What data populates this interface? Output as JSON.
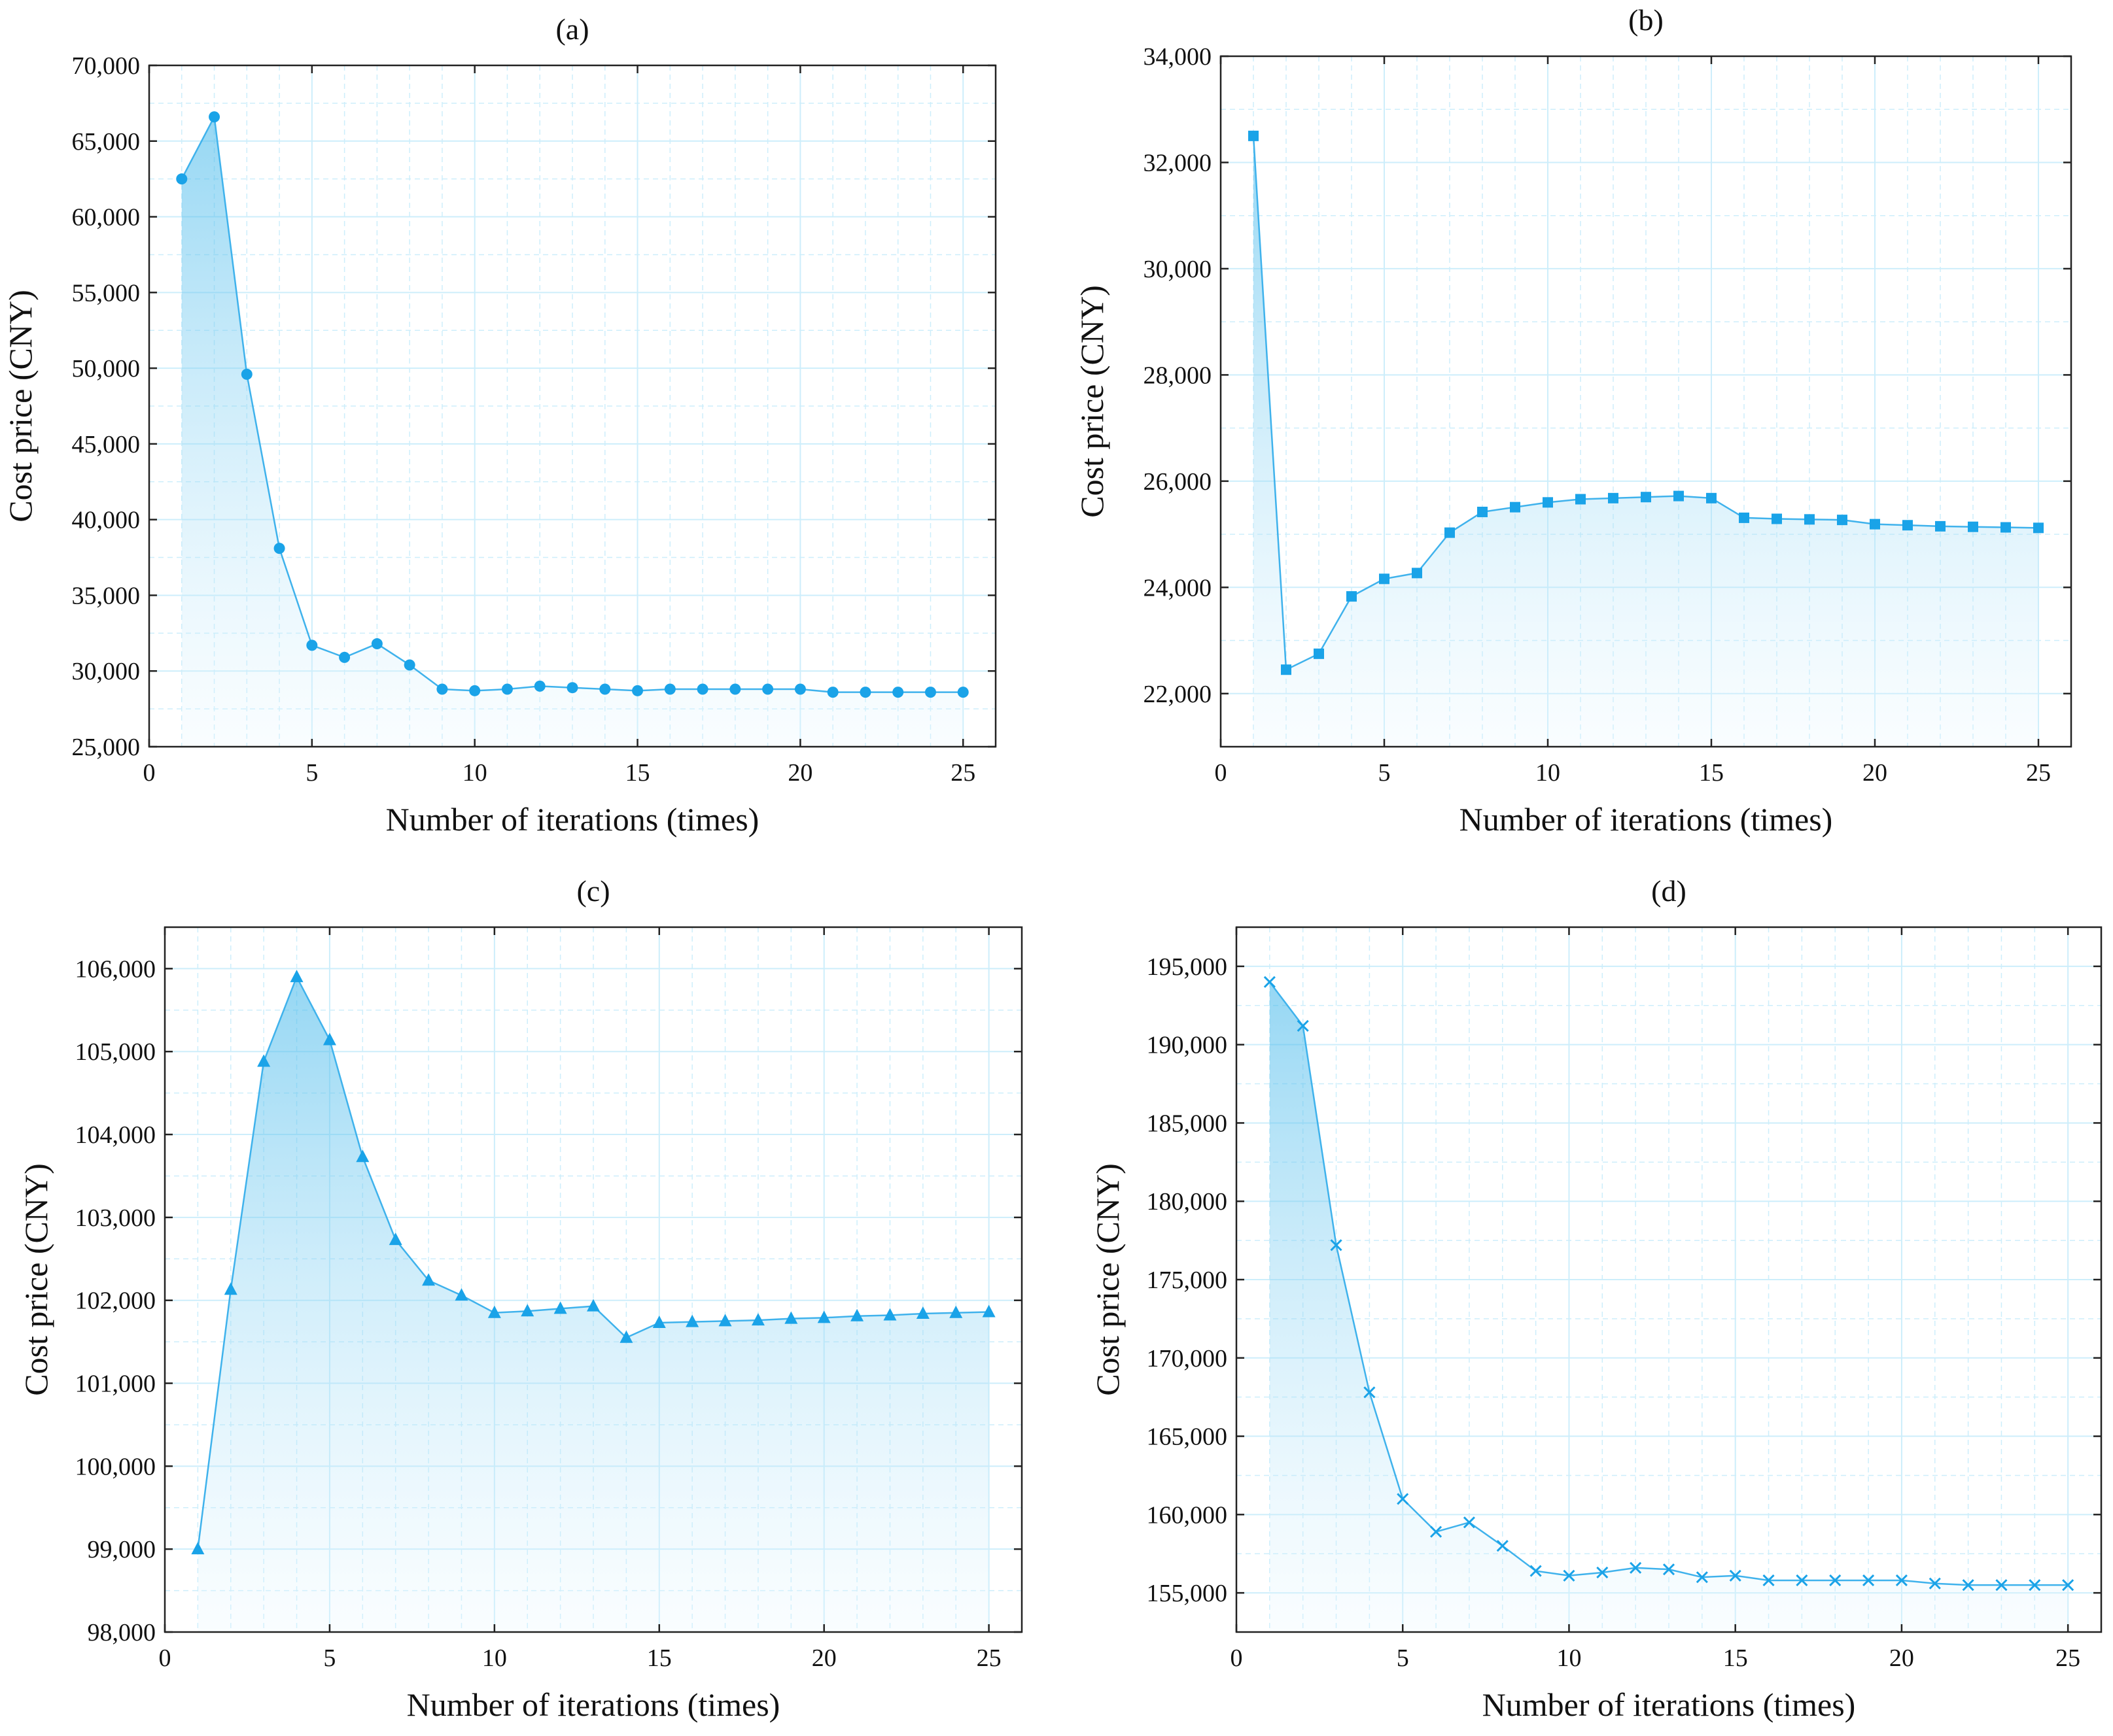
{
  "figure": {
    "panel_count": 4,
    "marker_color": "#1aa3e8",
    "line_color": "#3fb2ec",
    "grid_color": "#cdeefb",
    "fill_color_top": "#3fb6ea",
    "fill_color_bottom": "#e9f8ff"
  },
  "chart_data": [
    {
      "type": "area",
      "title": "(a)",
      "xlabel": "Number of iterations (times)",
      "ylabel": "Cost price (CNY)",
      "marker": "circle",
      "xlim": [
        0,
        26
      ],
      "ylim": [
        25000,
        70000
      ],
      "xticks": [
        0,
        5,
        10,
        15,
        20,
        25
      ],
      "xtick_labels": [
        "0",
        "5",
        "10",
        "15",
        "20",
        "25"
      ],
      "yticks": [
        25000,
        30000,
        35000,
        40000,
        45000,
        50000,
        55000,
        60000,
        65000,
        70000
      ],
      "ytick_labels": [
        "25,000",
        "30,000",
        "35,000",
        "40,000",
        "45,000",
        "50,000",
        "55,000",
        "60,000",
        "65,000",
        "70,000"
      ],
      "x": [
        1,
        2,
        3,
        4,
        5,
        6,
        7,
        8,
        9,
        10,
        11,
        12,
        13,
        14,
        15,
        16,
        17,
        18,
        19,
        20,
        21,
        22,
        23,
        24,
        25
      ],
      "y": [
        62500,
        66600,
        49600,
        38100,
        31700,
        30900,
        31800,
        30400,
        28800,
        28700,
        28800,
        29000,
        28900,
        28800,
        28700,
        28800,
        28800,
        28800,
        28800,
        28800,
        28600,
        28600,
        28600,
        28600,
        28600
      ]
    },
    {
      "type": "area",
      "title": "(b)",
      "xlabel": "Number of iterations (times)",
      "ylabel": "Cost price (CNY)",
      "marker": "square",
      "xlim": [
        0,
        26
      ],
      "ylim": [
        21000,
        34000
      ],
      "xticks": [
        0,
        5,
        10,
        15,
        20,
        25
      ],
      "xtick_labels": [
        "0",
        "5",
        "10",
        "15",
        "20",
        "25"
      ],
      "yticks": [
        22000,
        24000,
        26000,
        28000,
        30000,
        32000,
        34000
      ],
      "ytick_labels": [
        "22,000",
        "24,000",
        "26,000",
        "28,000",
        "30,000",
        "32,000",
        "34,000"
      ],
      "x": [
        1,
        2,
        3,
        4,
        5,
        6,
        7,
        8,
        9,
        10,
        11,
        12,
        13,
        14,
        15,
        16,
        17,
        18,
        19,
        20,
        21,
        22,
        23,
        24,
        25
      ],
      "y": [
        32500,
        22450,
        22750,
        23830,
        24160,
        24270,
        25030,
        25420,
        25510,
        25600,
        25660,
        25680,
        25700,
        25720,
        25680,
        25310,
        25290,
        25280,
        25270,
        25190,
        25170,
        25150,
        25140,
        25130,
        25120
      ]
    },
    {
      "type": "area",
      "title": "(c)",
      "xlabel": "Number of iterations (times)",
      "ylabel": "Cost price (CNY)",
      "marker": "triangle",
      "xlim": [
        0,
        26
      ],
      "ylim": [
        98000,
        106500
      ],
      "xticks": [
        0,
        5,
        10,
        15,
        20,
        25
      ],
      "xtick_labels": [
        "0",
        "5",
        "10",
        "15",
        "20",
        "25"
      ],
      "yticks": [
        98000,
        99000,
        100000,
        101000,
        102000,
        103000,
        104000,
        105000,
        106000
      ],
      "ytick_labels": [
        "98,000",
        "99,000",
        "100,000",
        "101,000",
        "102,000",
        "103,000",
        "104,000",
        "105,000",
        "106,000"
      ],
      "x": [
        1,
        2,
        3,
        4,
        5,
        6,
        7,
        8,
        9,
        10,
        11,
        12,
        13,
        14,
        15,
        16,
        17,
        18,
        19,
        20,
        21,
        22,
        23,
        24,
        25
      ],
      "y": [
        99000,
        102130,
        104880,
        105900,
        105140,
        103730,
        102730,
        102240,
        102060,
        101850,
        101870,
        101900,
        101930,
        101550,
        101730,
        101740,
        101750,
        101760,
        101780,
        101790,
        101810,
        101820,
        101840,
        101850,
        101860
      ]
    },
    {
      "type": "area",
      "title": "(d)",
      "xlabel": "Number of iterations (times)",
      "ylabel": "Cost price (CNY)",
      "marker": "x",
      "xlim": [
        0,
        26
      ],
      "ylim": [
        152500,
        197500
      ],
      "xticks": [
        0,
        5,
        10,
        15,
        20,
        25
      ],
      "xtick_labels": [
        "0",
        "5",
        "10",
        "15",
        "20",
        "25"
      ],
      "yticks": [
        155000,
        160000,
        165000,
        170000,
        175000,
        180000,
        185000,
        190000,
        195000
      ],
      "ytick_labels": [
        "155,000",
        "160,000",
        "165,000",
        "170,000",
        "175,000",
        "180,000",
        "185,000",
        "190,000",
        "195,000"
      ],
      "x": [
        1,
        2,
        3,
        4,
        5,
        6,
        7,
        8,
        9,
        10,
        11,
        12,
        13,
        14,
        15,
        16,
        17,
        18,
        19,
        20,
        21,
        22,
        23,
        24,
        25
      ],
      "y": [
        194000,
        191200,
        177200,
        167800,
        161000,
        158900,
        159500,
        158000,
        156400,
        156100,
        156300,
        156600,
        156500,
        156000,
        156100,
        155800,
        155800,
        155800,
        155800,
        155800,
        155600,
        155500,
        155500,
        155500,
        155500
      ]
    }
  ]
}
